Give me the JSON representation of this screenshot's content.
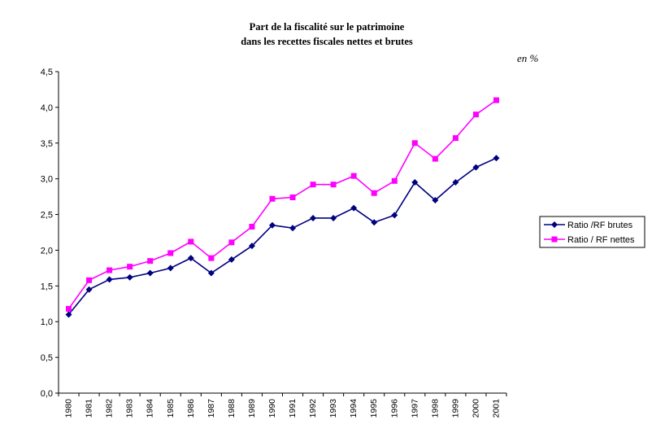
{
  "chart_data": {
    "type": "line",
    "title_lines": [
      "Part de la fiscalité sur le patrimoine",
      "dans les recettes fiscales nettes et brutes"
    ],
    "unit_label": "en %",
    "x": [
      "1980",
      "1981",
      "1982",
      "1983",
      "1984",
      "1985",
      "1986",
      "1987",
      "1988",
      "1989",
      "1990",
      "1991",
      "1992",
      "1993",
      "1994",
      "1995",
      "1996",
      "1997",
      "1998",
      "1999",
      "2000",
      "2001"
    ],
    "ylim": [
      0,
      4.5
    ],
    "yticks": [
      "0,0",
      "0,5",
      "1,0",
      "1,5",
      "2,0",
      "2,5",
      "3,0",
      "3,5",
      "4,0",
      "4,5"
    ],
    "grid": false,
    "legend_position": "right",
    "series": [
      {
        "name": "Ratio /RF brutes",
        "color": "#000080",
        "marker": "diamond",
        "values": [
          1.1,
          1.45,
          1.59,
          1.62,
          1.68,
          1.75,
          1.89,
          1.68,
          1.87,
          2.06,
          2.35,
          2.31,
          2.45,
          2.45,
          2.59,
          2.39,
          2.49,
          2.95,
          2.7,
          2.95,
          3.16,
          3.29
        ]
      },
      {
        "name": "Ratio / RF nettes",
        "color": "#ff00ff",
        "marker": "square",
        "values": [
          1.18,
          1.58,
          1.72,
          1.77,
          1.85,
          1.96,
          2.12,
          1.89,
          2.11,
          2.33,
          2.72,
          2.74,
          2.92,
          2.92,
          3.04,
          2.8,
          2.97,
          3.5,
          3.28,
          3.57,
          3.9,
          4.1
        ]
      }
    ]
  }
}
